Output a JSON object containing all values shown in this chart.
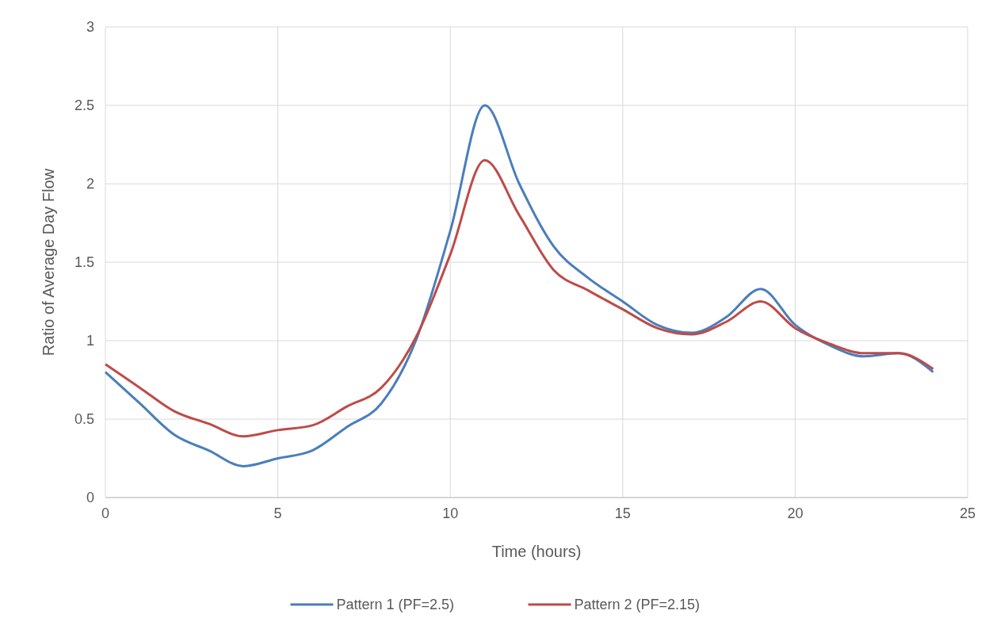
{
  "chart_data": {
    "type": "line",
    "xlabel": "Time (hours)",
    "ylabel": "Ratio of Average Day Flow",
    "x": [
      0,
      1,
      2,
      3,
      4,
      5,
      6,
      7,
      8,
      9,
      10,
      11,
      12,
      13,
      14,
      15,
      16,
      17,
      18,
      19,
      20,
      21,
      22,
      23,
      24
    ],
    "series": [
      {
        "name": "Pattern 1 (PF=2.5)",
        "color": "#4a7ebb",
        "values": [
          0.8,
          0.6,
          0.4,
          0.3,
          0.2,
          0.25,
          0.3,
          0.45,
          0.6,
          1.0,
          1.7,
          2.5,
          2.0,
          1.6,
          1.4,
          1.25,
          1.1,
          1.05,
          1.15,
          1.33,
          1.1,
          0.97,
          0.9,
          0.92,
          0.8
        ]
      },
      {
        "name": "Pattern 2 (PF=2.15)",
        "color": "#be4b48",
        "values": [
          0.85,
          0.7,
          0.55,
          0.47,
          0.39,
          0.43,
          0.46,
          0.58,
          0.7,
          1.02,
          1.55,
          2.15,
          1.8,
          1.45,
          1.32,
          1.2,
          1.08,
          1.04,
          1.12,
          1.25,
          1.08,
          0.98,
          0.92,
          0.92,
          0.82
        ]
      }
    ],
    "xlim": [
      0,
      25
    ],
    "xticks": [
      0,
      5,
      10,
      15,
      20,
      25
    ],
    "ylim": [
      0,
      3
    ],
    "yticks": [
      0,
      0.5,
      1,
      1.5,
      2,
      2.5,
      3
    ],
    "grid": true,
    "legend": "bottom",
    "line_style": "solid"
  }
}
